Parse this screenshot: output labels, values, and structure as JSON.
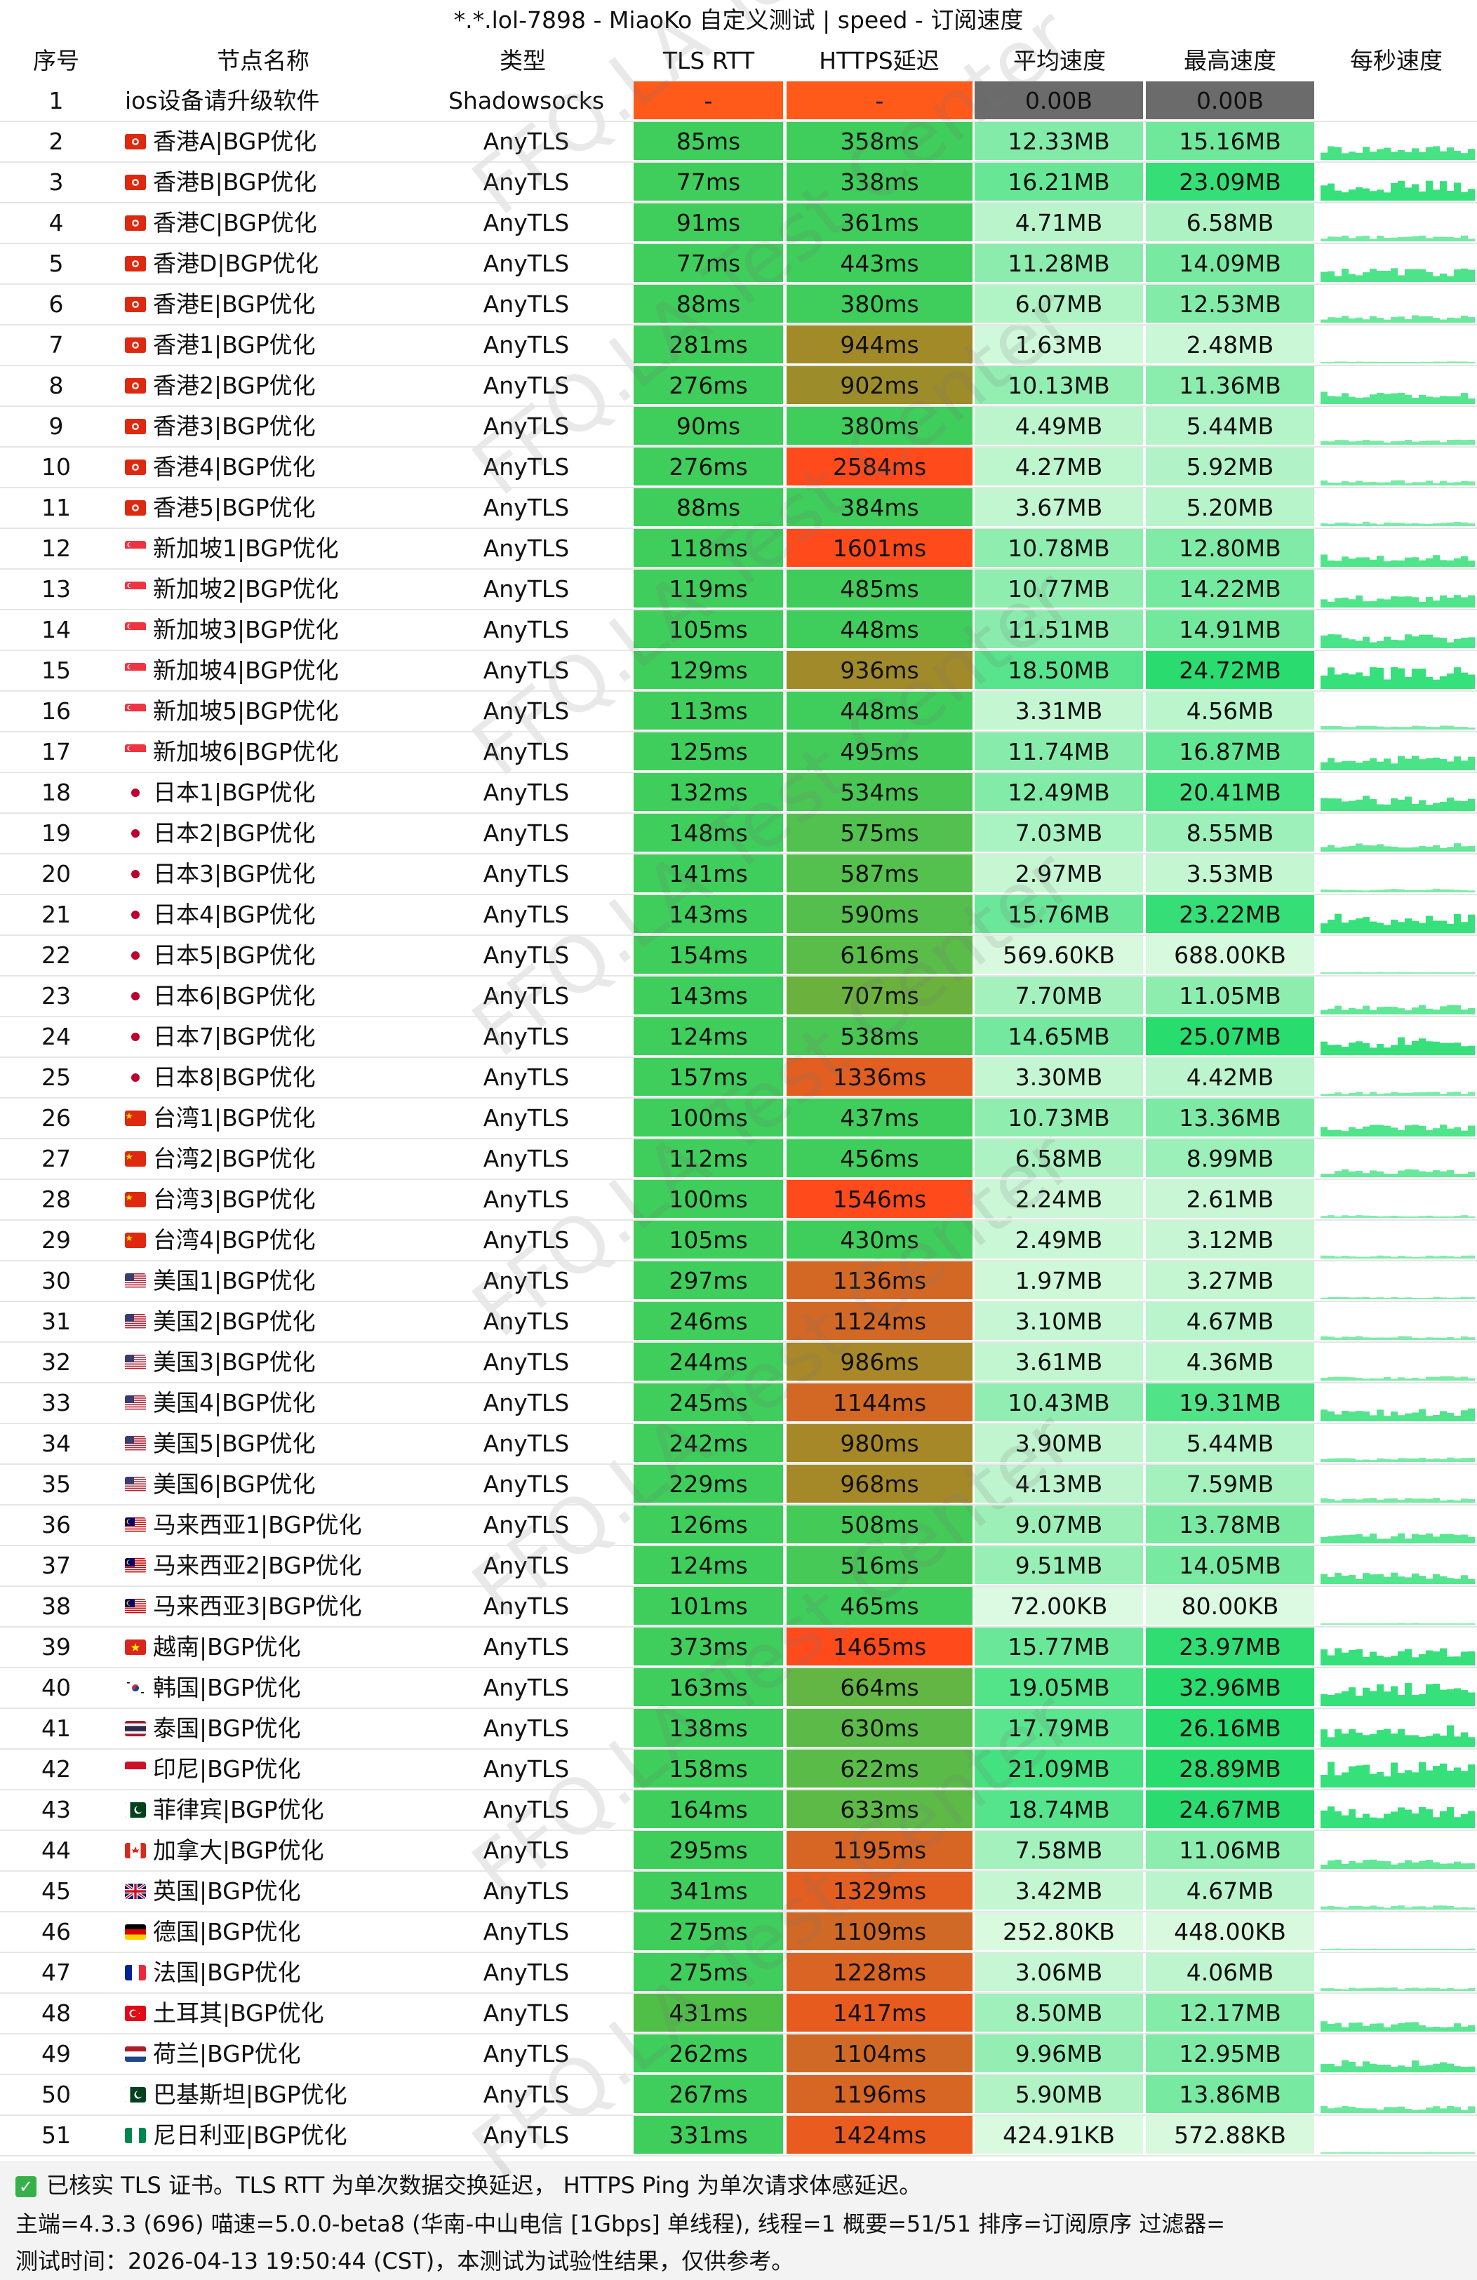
{
  "title": "*.*.lol-7898 - MiaoKo 自定义测试 | speed - 订阅速度",
  "headers": [
    "序号",
    "节点名称",
    "类型",
    "TLS RTT",
    "HTTPS延迟",
    "平均速度",
    "最高速度",
    "每秒速度"
  ],
  "watermark": "FFQ.LA Test Center",
  "colors": {
    "tls_fast": "#3ecb5a",
    "https_bad": "#ff4b1f",
    "https_slow": "#c7681f",
    "https_mid": "#9a8c2e",
    "https_ok": "#57b840",
    "na": "#ff5a1a",
    "zero": "#6b6b6b",
    "spark": "#36e07a"
  },
  "rows": [
    {
      "idx": "1",
      "flag": "none",
      "name": "ios设备请升级软件",
      "type": "Shadowsocks",
      "tls": "-",
      "https": "-",
      "avg": "0.00B",
      "max": "0.00B",
      "na": true,
      "avg_mb": 0,
      "max_mb": 0
    },
    {
      "idx": "2",
      "flag": "hk",
      "name": "香港A|BGP优化",
      "type": "AnyTLS",
      "tls": "85ms",
      "https": "358ms",
      "avg": "12.33MB",
      "max": "15.16MB",
      "avg_mb": 12.33,
      "max_mb": 15.16
    },
    {
      "idx": "3",
      "flag": "hk",
      "name": "香港B|BGP优化",
      "type": "AnyTLS",
      "tls": "77ms",
      "https": "338ms",
      "avg": "16.21MB",
      "max": "23.09MB",
      "avg_mb": 16.21,
      "max_mb": 23.09
    },
    {
      "idx": "4",
      "flag": "hk",
      "name": "香港C|BGP优化",
      "type": "AnyTLS",
      "tls": "91ms",
      "https": "361ms",
      "avg": "4.71MB",
      "max": "6.58MB",
      "avg_mb": 4.71,
      "max_mb": 6.58
    },
    {
      "idx": "5",
      "flag": "hk",
      "name": "香港D|BGP优化",
      "type": "AnyTLS",
      "tls": "77ms",
      "https": "443ms",
      "avg": "11.28MB",
      "max": "14.09MB",
      "avg_mb": 11.28,
      "max_mb": 14.09
    },
    {
      "idx": "6",
      "flag": "hk",
      "name": "香港E|BGP优化",
      "type": "AnyTLS",
      "tls": "88ms",
      "https": "380ms",
      "avg": "6.07MB",
      "max": "12.53MB",
      "avg_mb": 6.07,
      "max_mb": 12.53
    },
    {
      "idx": "7",
      "flag": "hk",
      "name": "香港1|BGP优化",
      "type": "AnyTLS",
      "tls": "281ms",
      "https": "944ms",
      "avg": "1.63MB",
      "max": "2.48MB",
      "avg_mb": 1.63,
      "max_mb": 2.48
    },
    {
      "idx": "8",
      "flag": "hk",
      "name": "香港2|BGP优化",
      "type": "AnyTLS",
      "tls": "276ms",
      "https": "902ms",
      "avg": "10.13MB",
      "max": "11.36MB",
      "avg_mb": 10.13,
      "max_mb": 11.36
    },
    {
      "idx": "9",
      "flag": "hk",
      "name": "香港3|BGP优化",
      "type": "AnyTLS",
      "tls": "90ms",
      "https": "380ms",
      "avg": "4.49MB",
      "max": "5.44MB",
      "avg_mb": 4.49,
      "max_mb": 5.44
    },
    {
      "idx": "10",
      "flag": "hk",
      "name": "香港4|BGP优化",
      "type": "AnyTLS",
      "tls": "276ms",
      "https": "2584ms",
      "avg": "4.27MB",
      "max": "5.92MB",
      "avg_mb": 4.27,
      "max_mb": 5.92
    },
    {
      "idx": "11",
      "flag": "hk",
      "name": "香港5|BGP优化",
      "type": "AnyTLS",
      "tls": "88ms",
      "https": "384ms",
      "avg": "3.67MB",
      "max": "5.20MB",
      "avg_mb": 3.67,
      "max_mb": 5.2
    },
    {
      "idx": "12",
      "flag": "sg",
      "name": "新加坡1|BGP优化",
      "type": "AnyTLS",
      "tls": "118ms",
      "https": "1601ms",
      "avg": "10.78MB",
      "max": "12.80MB",
      "avg_mb": 10.78,
      "max_mb": 12.8
    },
    {
      "idx": "13",
      "flag": "sg",
      "name": "新加坡2|BGP优化",
      "type": "AnyTLS",
      "tls": "119ms",
      "https": "485ms",
      "avg": "10.77MB",
      "max": "14.22MB",
      "avg_mb": 10.77,
      "max_mb": 14.22
    },
    {
      "idx": "14",
      "flag": "sg",
      "name": "新加坡3|BGP优化",
      "type": "AnyTLS",
      "tls": "105ms",
      "https": "448ms",
      "avg": "11.51MB",
      "max": "14.91MB",
      "avg_mb": 11.51,
      "max_mb": 14.91
    },
    {
      "idx": "15",
      "flag": "sg",
      "name": "新加坡4|BGP优化",
      "type": "AnyTLS",
      "tls": "129ms",
      "https": "936ms",
      "avg": "18.50MB",
      "max": "24.72MB",
      "avg_mb": 18.5,
      "max_mb": 24.72
    },
    {
      "idx": "16",
      "flag": "sg",
      "name": "新加坡5|BGP优化",
      "type": "AnyTLS",
      "tls": "113ms",
      "https": "448ms",
      "avg": "3.31MB",
      "max": "4.56MB",
      "avg_mb": 3.31,
      "max_mb": 4.56
    },
    {
      "idx": "17",
      "flag": "sg",
      "name": "新加坡6|BGP优化",
      "type": "AnyTLS",
      "tls": "125ms",
      "https": "495ms",
      "avg": "11.74MB",
      "max": "16.87MB",
      "avg_mb": 11.74,
      "max_mb": 16.87
    },
    {
      "idx": "18",
      "flag": "jp",
      "name": "日本1|BGP优化",
      "type": "AnyTLS",
      "tls": "132ms",
      "https": "534ms",
      "avg": "12.49MB",
      "max": "20.41MB",
      "avg_mb": 12.49,
      "max_mb": 20.41
    },
    {
      "idx": "19",
      "flag": "jp",
      "name": "日本2|BGP优化",
      "type": "AnyTLS",
      "tls": "148ms",
      "https": "575ms",
      "avg": "7.03MB",
      "max": "8.55MB",
      "avg_mb": 7.03,
      "max_mb": 8.55
    },
    {
      "idx": "20",
      "flag": "jp",
      "name": "日本3|BGP优化",
      "type": "AnyTLS",
      "tls": "141ms",
      "https": "587ms",
      "avg": "2.97MB",
      "max": "3.53MB",
      "avg_mb": 2.97,
      "max_mb": 3.53
    },
    {
      "idx": "21",
      "flag": "jp",
      "name": "日本4|BGP优化",
      "type": "AnyTLS",
      "tls": "143ms",
      "https": "590ms",
      "avg": "15.76MB",
      "max": "23.22MB",
      "avg_mb": 15.76,
      "max_mb": 23.22
    },
    {
      "idx": "22",
      "flag": "jp",
      "name": "日本5|BGP优化",
      "type": "AnyTLS",
      "tls": "154ms",
      "https": "616ms",
      "avg": "569.60KB",
      "max": "688.00KB",
      "avg_mb": 0.56,
      "max_mb": 0.67
    },
    {
      "idx": "23",
      "flag": "jp",
      "name": "日本6|BGP优化",
      "type": "AnyTLS",
      "tls": "143ms",
      "https": "707ms",
      "avg": "7.70MB",
      "max": "11.05MB",
      "avg_mb": 7.7,
      "max_mb": 11.05
    },
    {
      "idx": "24",
      "flag": "jp",
      "name": "日本7|BGP优化",
      "type": "AnyTLS",
      "tls": "124ms",
      "https": "538ms",
      "avg": "14.65MB",
      "max": "25.07MB",
      "avg_mb": 14.65,
      "max_mb": 25.07
    },
    {
      "idx": "25",
      "flag": "jp",
      "name": "日本8|BGP优化",
      "type": "AnyTLS",
      "tls": "157ms",
      "https": "1336ms",
      "avg": "3.30MB",
      "max": "4.42MB",
      "avg_mb": 3.3,
      "max_mb": 4.42
    },
    {
      "idx": "26",
      "flag": "cn",
      "name": "台湾1|BGP优化",
      "type": "AnyTLS",
      "tls": "100ms",
      "https": "437ms",
      "avg": "10.73MB",
      "max": "13.36MB",
      "avg_mb": 10.73,
      "max_mb": 13.36
    },
    {
      "idx": "27",
      "flag": "cn",
      "name": "台湾2|BGP优化",
      "type": "AnyTLS",
      "tls": "112ms",
      "https": "456ms",
      "avg": "6.58MB",
      "max": "8.99MB",
      "avg_mb": 6.58,
      "max_mb": 8.99
    },
    {
      "idx": "28",
      "flag": "cn",
      "name": "台湾3|BGP优化",
      "type": "AnyTLS",
      "tls": "100ms",
      "https": "1546ms",
      "avg": "2.24MB",
      "max": "2.61MB",
      "avg_mb": 2.24,
      "max_mb": 2.61
    },
    {
      "idx": "29",
      "flag": "cn",
      "name": "台湾4|BGP优化",
      "type": "AnyTLS",
      "tls": "105ms",
      "https": "430ms",
      "avg": "2.49MB",
      "max": "3.12MB",
      "avg_mb": 2.49,
      "max_mb": 3.12
    },
    {
      "idx": "30",
      "flag": "us",
      "name": "美国1|BGP优化",
      "type": "AnyTLS",
      "tls": "297ms",
      "https": "1136ms",
      "avg": "1.97MB",
      "max": "3.27MB",
      "avg_mb": 1.97,
      "max_mb": 3.27
    },
    {
      "idx": "31",
      "flag": "us",
      "name": "美国2|BGP优化",
      "type": "AnyTLS",
      "tls": "246ms",
      "https": "1124ms",
      "avg": "3.10MB",
      "max": "4.67MB",
      "avg_mb": 3.1,
      "max_mb": 4.67
    },
    {
      "idx": "32",
      "flag": "us",
      "name": "美国3|BGP优化",
      "type": "AnyTLS",
      "tls": "244ms",
      "https": "986ms",
      "avg": "3.61MB",
      "max": "4.36MB",
      "avg_mb": 3.61,
      "max_mb": 4.36
    },
    {
      "idx": "33",
      "flag": "us",
      "name": "美国4|BGP优化",
      "type": "AnyTLS",
      "tls": "245ms",
      "https": "1144ms",
      "avg": "10.43MB",
      "max": "19.31MB",
      "avg_mb": 10.43,
      "max_mb": 19.31
    },
    {
      "idx": "34",
      "flag": "us",
      "name": "美国5|BGP优化",
      "type": "AnyTLS",
      "tls": "242ms",
      "https": "980ms",
      "avg": "3.90MB",
      "max": "5.44MB",
      "avg_mb": 3.9,
      "max_mb": 5.44
    },
    {
      "idx": "35",
      "flag": "us",
      "name": "美国6|BGP优化",
      "type": "AnyTLS",
      "tls": "229ms",
      "https": "968ms",
      "avg": "4.13MB",
      "max": "7.59MB",
      "avg_mb": 4.13,
      "max_mb": 7.59
    },
    {
      "idx": "36",
      "flag": "my",
      "name": "马来西亚1|BGP优化",
      "type": "AnyTLS",
      "tls": "126ms",
      "https": "508ms",
      "avg": "9.07MB",
      "max": "13.78MB",
      "avg_mb": 9.07,
      "max_mb": 13.78
    },
    {
      "idx": "37",
      "flag": "my",
      "name": "马来西亚2|BGP优化",
      "type": "AnyTLS",
      "tls": "124ms",
      "https": "516ms",
      "avg": "9.51MB",
      "max": "14.05MB",
      "avg_mb": 9.51,
      "max_mb": 14.05
    },
    {
      "idx": "38",
      "flag": "my",
      "name": "马来西亚3|BGP优化",
      "type": "AnyTLS",
      "tls": "101ms",
      "https": "465ms",
      "avg": "72.00KB",
      "max": "80.00KB",
      "avg_mb": 0.07,
      "max_mb": 0.08
    },
    {
      "idx": "39",
      "flag": "vn",
      "name": "越南|BGP优化",
      "type": "AnyTLS",
      "tls": "373ms",
      "https": "1465ms",
      "avg": "15.77MB",
      "max": "23.97MB",
      "avg_mb": 15.77,
      "max_mb": 23.97
    },
    {
      "idx": "40",
      "flag": "kr",
      "name": "韩国|BGP优化",
      "type": "AnyTLS",
      "tls": "163ms",
      "https": "664ms",
      "avg": "19.05MB",
      "max": "32.96MB",
      "avg_mb": 19.05,
      "max_mb": 32.96
    },
    {
      "idx": "41",
      "flag": "th",
      "name": "泰国|BGP优化",
      "type": "AnyTLS",
      "tls": "138ms",
      "https": "630ms",
      "avg": "17.79MB",
      "max": "26.16MB",
      "avg_mb": 17.79,
      "max_mb": 26.16
    },
    {
      "idx": "42",
      "flag": "id",
      "name": "印尼|BGP优化",
      "type": "AnyTLS",
      "tls": "158ms",
      "https": "622ms",
      "avg": "21.09MB",
      "max": "28.89MB",
      "avg_mb": 21.09,
      "max_mb": 28.89
    },
    {
      "idx": "43",
      "flag": "pk",
      "name": "菲律宾|BGP优化",
      "type": "AnyTLS",
      "tls": "164ms",
      "https": "633ms",
      "avg": "18.74MB",
      "max": "24.67MB",
      "avg_mb": 18.74,
      "max_mb": 24.67
    },
    {
      "idx": "44",
      "flag": "ca",
      "name": "加拿大|BGP优化",
      "type": "AnyTLS",
      "tls": "295ms",
      "https": "1195ms",
      "avg": "7.58MB",
      "max": "11.06MB",
      "avg_mb": 7.58,
      "max_mb": 11.06
    },
    {
      "idx": "45",
      "flag": "gb",
      "name": "英国|BGP优化",
      "type": "AnyTLS",
      "tls": "341ms",
      "https": "1329ms",
      "avg": "3.42MB",
      "max": "4.67MB",
      "avg_mb": 3.42,
      "max_mb": 4.67
    },
    {
      "idx": "46",
      "flag": "de",
      "name": "德国|BGP优化",
      "type": "AnyTLS",
      "tls": "275ms",
      "https": "1109ms",
      "avg": "252.80KB",
      "max": "448.00KB",
      "avg_mb": 0.25,
      "max_mb": 0.44
    },
    {
      "idx": "47",
      "flag": "fr",
      "name": "法国|BGP优化",
      "type": "AnyTLS",
      "tls": "275ms",
      "https": "1228ms",
      "avg": "3.06MB",
      "max": "4.06MB",
      "avg_mb": 3.06,
      "max_mb": 4.06
    },
    {
      "idx": "48",
      "flag": "tr",
      "name": "土耳其|BGP优化",
      "type": "AnyTLS",
      "tls": "431ms",
      "https": "1417ms",
      "avg": "8.50MB",
      "max": "12.17MB",
      "avg_mb": 8.5,
      "max_mb": 12.17
    },
    {
      "idx": "49",
      "flag": "nl",
      "name": "荷兰|BGP优化",
      "type": "AnyTLS",
      "tls": "262ms",
      "https": "1104ms",
      "avg": "9.96MB",
      "max": "12.95MB",
      "avg_mb": 9.96,
      "max_mb": 12.95
    },
    {
      "idx": "50",
      "flag": "pk",
      "name": "巴基斯坦|BGP优化",
      "type": "AnyTLS",
      "tls": "267ms",
      "https": "1196ms",
      "avg": "5.90MB",
      "max": "13.86MB",
      "avg_mb": 5.9,
      "max_mb": 13.86
    },
    {
      "idx": "51",
      "flag": "ng",
      "name": "尼日利亚|BGP优化",
      "type": "AnyTLS",
      "tls": "331ms",
      "https": "1424ms",
      "avg": "424.91KB",
      "max": "572.88KB",
      "avg_mb": 0.41,
      "max_mb": 0.56
    }
  ],
  "footer": {
    "line1": "已核实 TLS 证书。TLS RTT 为单次数据交换延迟， HTTPS Ping 为单次请求体感延迟。",
    "line2": "主端=4.3.3 (696) 喵速=5.0.0-beta8 (华南-中山电信 [1Gbps] 单线程), 线程=1 概要=51/51 排序=订阅原序 过滤器=",
    "line3": "测试时间：2026-04-13 19:50:44 (CST)，本测试为试验性结果，仅供参考。"
  }
}
